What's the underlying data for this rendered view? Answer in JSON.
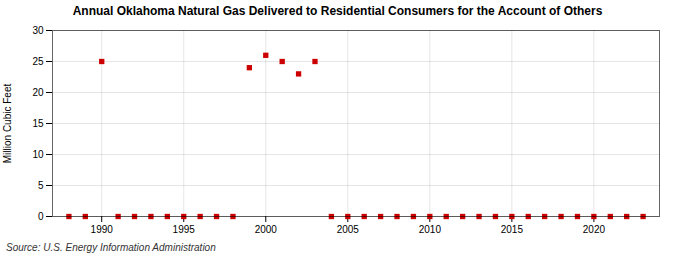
{
  "chart_data": {
    "type": "scatter",
    "title": "Annual Oklahoma Natural Gas Delivered to Residential Consumers for the Account of Others",
    "ylabel": "Million Cubic Feet",
    "source": "Source: U.S. Energy Information Administration",
    "x": [
      1988,
      1989,
      1990,
      1991,
      1992,
      1993,
      1994,
      1995,
      1996,
      1997,
      1998,
      1999,
      2000,
      2001,
      2002,
      2003,
      2004,
      2005,
      2006,
      2007,
      2008,
      2009,
      2010,
      2011,
      2012,
      2013,
      2014,
      2015,
      2016,
      2017,
      2018,
      2019,
      2020,
      2021,
      2022,
      2023
    ],
    "values": [
      0.0,
      0.0,
      25.0,
      0.0,
      0.0,
      0.0,
      0.0,
      0.0,
      0.0,
      0.0,
      0.0,
      24.0,
      26.0,
      25.0,
      23.0,
      25.0,
      0.0,
      0.0,
      0.0,
      0.0,
      0.0,
      0.0,
      0.0,
      0.0,
      0.0,
      0.0,
      0.0,
      0.0,
      0.0,
      0.0,
      0.0,
      0.0,
      0.0,
      0.0,
      0.0,
      0.0
    ],
    "color": "#cc0000",
    "marker": "square",
    "xlim": [
      1987,
      2024
    ],
    "xticks": [
      1990,
      1995,
      2000,
      2005,
      2010,
      2015,
      2020
    ],
    "ylim": [
      0,
      30
    ],
    "yticks": [
      0,
      5,
      10,
      15,
      20,
      25,
      30
    ],
    "grid": true
  }
}
